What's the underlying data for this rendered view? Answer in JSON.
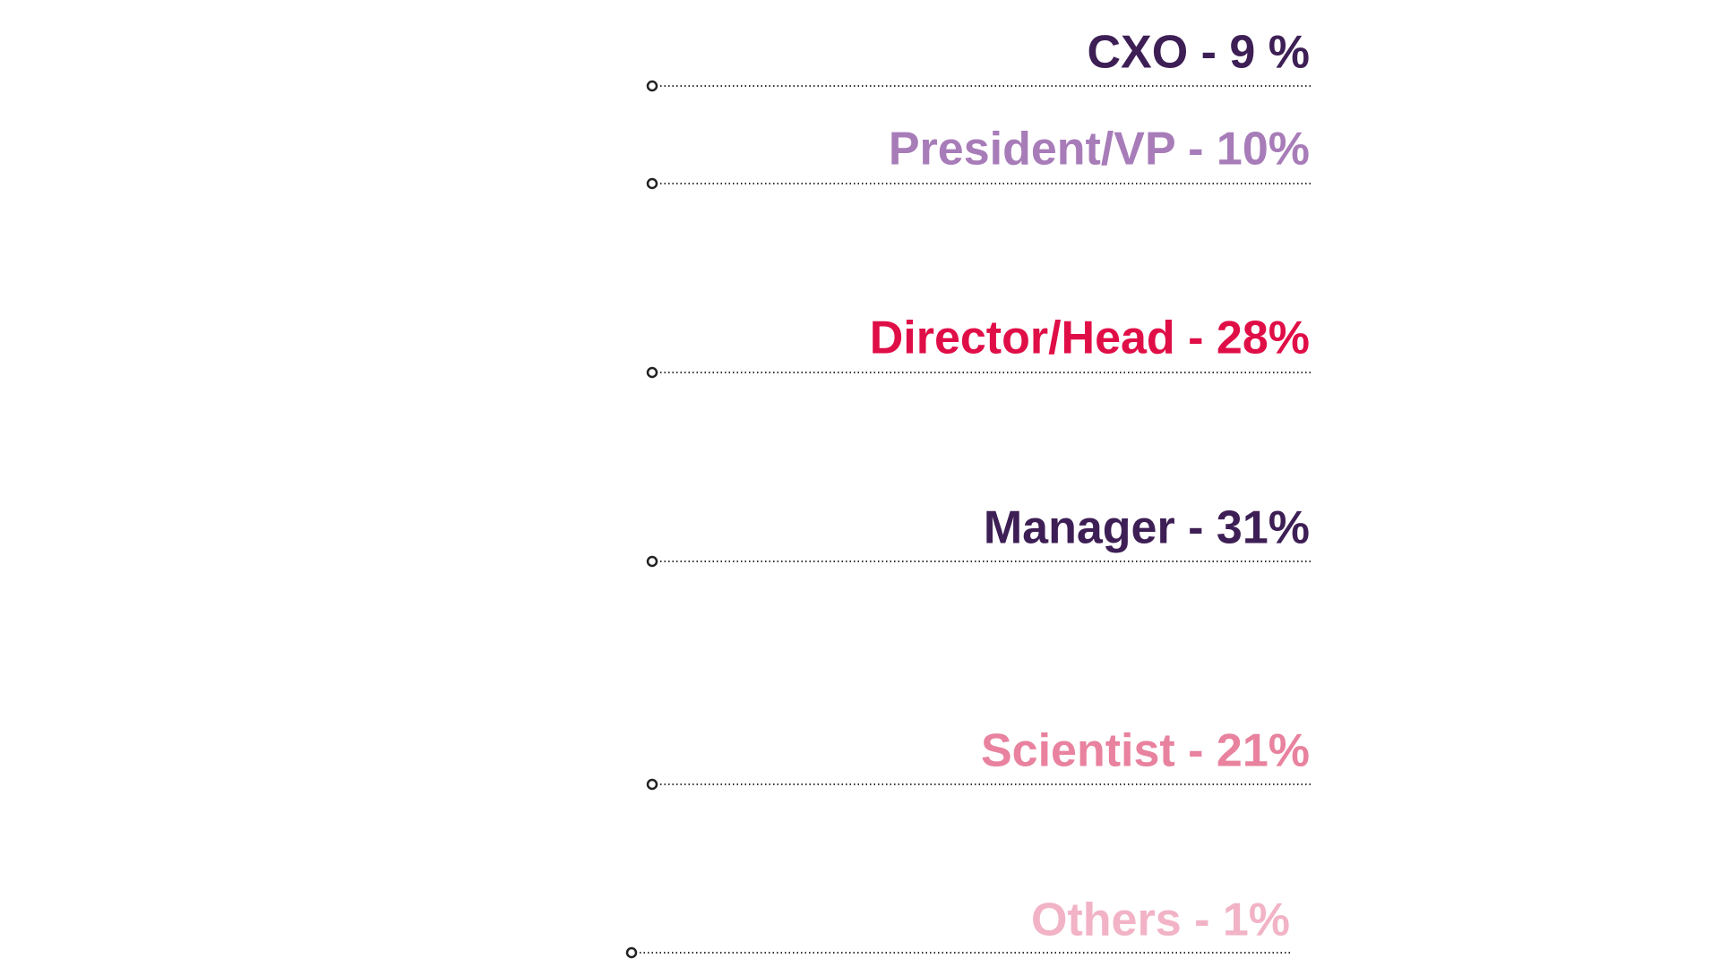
{
  "levels": [
    {
      "label": "CXO - 9 %",
      "color": "#3d1f55"
    },
    {
      "label": "President/VP - 10%",
      "color": "#a77cb8"
    },
    {
      "label": "Director/Head - 28%",
      "color": "#e00e47"
    },
    {
      "label": "Manager - 31%",
      "color": "#3d1f55"
    },
    {
      "label": "Scientist - 21%",
      "color": "#e8829e"
    },
    {
      "label": "Others - 1%",
      "color": "#f2b3c6"
    }
  ]
}
